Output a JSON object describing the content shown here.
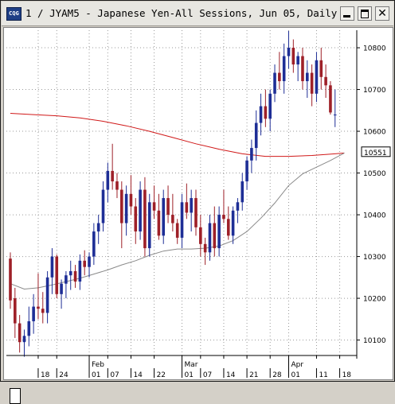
{
  "window": {
    "title": "1 / JYAM5 - Japanese Yen-All Sessions, Jun 05, Daily",
    "icon": "cqg-icon",
    "controls": [
      "minimize",
      "maximize",
      "close"
    ]
  },
  "colors": {
    "up": "#1e2e96",
    "down": "#9e2028",
    "ma_long": "#d01818",
    "ma_short": "#8a8a8a",
    "price_box": "#000000"
  },
  "price_label": "10551",
  "chart_data": {
    "type": "candlestick",
    "symbol": "JYAM5",
    "title": "1 / JYAM5 - Japanese Yen-All Sessions, Jun 05, Daily",
    "y_ticks": [
      10100,
      10200,
      10300,
      10400,
      10500,
      10600,
      10700,
      10800
    ],
    "y_range": [
      10063,
      10842
    ],
    "month_labels": [
      {
        "label": "Feb",
        "index": 17
      },
      {
        "label": "Mar",
        "index": 37
      },
      {
        "label": "Apr",
        "index": 60
      }
    ],
    "day_labels": [
      {
        "label": "18",
        "index": 6
      },
      {
        "label": "24",
        "index": 10
      },
      {
        "label": "01",
        "index": 17
      },
      {
        "label": "07",
        "index": 21
      },
      {
        "label": "14",
        "index": 26
      },
      {
        "label": "22",
        "index": 31
      },
      {
        "label": "01",
        "index": 37
      },
      {
        "label": "07",
        "index": 41
      },
      {
        "label": "14",
        "index": 46
      },
      {
        "label": "21",
        "index": 51
      },
      {
        "label": "28",
        "index": 56
      },
      {
        "label": "01",
        "index": 60
      },
      {
        "label": "11",
        "index": 66
      },
      {
        "label": "18",
        "index": 71
      }
    ],
    "candles": [
      [
        10295,
        10310,
        10175,
        10195
      ],
      [
        10200,
        10225,
        10105,
        10140
      ],
      [
        10140,
        10160,
        10070,
        10095
      ],
      [
        10095,
        10125,
        10060,
        10110
      ],
      [
        10110,
        10180,
        10085,
        10145
      ],
      [
        10145,
        10210,
        10115,
        10180
      ],
      [
        10180,
        10260,
        10150,
        10175
      ],
      [
        10175,
        10215,
        10140,
        10165
      ],
      [
        10165,
        10265,
        10140,
        10250
      ],
      [
        10250,
        10320,
        10210,
        10300
      ],
      [
        10300,
        10305,
        10200,
        10210
      ],
      [
        10210,
        10245,
        10175,
        10235
      ],
      [
        10235,
        10265,
        10200,
        10255
      ],
      [
        10255,
        10290,
        10220,
        10265
      ],
      [
        10265,
        10280,
        10225,
        10240
      ],
      [
        10240,
        10305,
        10220,
        10290
      ],
      [
        10290,
        10315,
        10255,
        10275
      ],
      [
        10275,
        10310,
        10250,
        10300
      ],
      [
        10300,
        10380,
        10280,
        10360
      ],
      [
        10360,
        10400,
        10330,
        10380
      ],
      [
        10380,
        10480,
        10360,
        10460
      ],
      [
        10460,
        10525,
        10430,
        10505
      ],
      [
        10505,
        10570,
        10460,
        10480
      ],
      [
        10480,
        10500,
        10440,
        10460
      ],
      [
        10460,
        10480,
        10320,
        10380
      ],
      [
        10380,
        10470,
        10350,
        10450
      ],
      [
        10450,
        10495,
        10400,
        10420
      ],
      [
        10420,
        10440,
        10330,
        10360
      ],
      [
        10360,
        10480,
        10340,
        10460
      ],
      [
        10460,
        10490,
        10300,
        10320
      ],
      [
        10320,
        10450,
        10300,
        10430
      ],
      [
        10430,
        10470,
        10390,
        10410
      ],
      [
        10410,
        10450,
        10340,
        10350
      ],
      [
        10350,
        10460,
        10330,
        10440
      ],
      [
        10440,
        10470,
        10380,
        10400
      ],
      [
        10400,
        10450,
        10360,
        10380
      ],
      [
        10380,
        10390,
        10330,
        10345
      ],
      [
        10345,
        10450,
        10320,
        10430
      ],
      [
        10430,
        10475,
        10390,
        10405
      ],
      [
        10405,
        10460,
        10360,
        10440
      ],
      [
        10440,
        10460,
        10350,
        10370
      ],
      [
        10370,
        10400,
        10300,
        10330
      ],
      [
        10330,
        10345,
        10280,
        10310
      ],
      [
        10310,
        10400,
        10290,
        10380
      ],
      [
        10380,
        10420,
        10300,
        10320
      ],
      [
        10320,
        10420,
        10300,
        10400
      ],
      [
        10400,
        10460,
        10380,
        10390
      ],
      [
        10390,
        10420,
        10340,
        10350
      ],
      [
        10350,
        10420,
        10330,
        10410
      ],
      [
        10410,
        10440,
        10380,
        10430
      ],
      [
        10430,
        10500,
        10410,
        10480
      ],
      [
        10480,
        10540,
        10460,
        10530
      ],
      [
        10530,
        10580,
        10500,
        10560
      ],
      [
        10560,
        10650,
        10530,
        10620
      ],
      [
        10620,
        10690,
        10590,
        10660
      ],
      [
        10660,
        10700,
        10610,
        10630
      ],
      [
        10630,
        10700,
        10600,
        10690
      ],
      [
        10690,
        10760,
        10670,
        10740
      ],
      [
        10740,
        10790,
        10700,
        10720
      ],
      [
        10720,
        10810,
        10690,
        10780
      ],
      [
        10780,
        10840,
        10750,
        10800
      ],
      [
        10800,
        10820,
        10740,
        10760
      ],
      [
        10760,
        10790,
        10720,
        10780
      ],
      [
        10780,
        10800,
        10700,
        10720
      ],
      [
        10720,
        10770,
        10680,
        10740
      ],
      [
        10740,
        10760,
        10660,
        10690
      ],
      [
        10690,
        10790,
        10670,
        10770
      ],
      [
        10770,
        10800,
        10700,
        10730
      ],
      [
        10730,
        10760,
        10680,
        10710
      ],
      [
        10710,
        10720,
        10640,
        10645
      ],
      [
        10640,
        10700,
        10610,
        10640
      ]
    ],
    "ma_long": [
      [
        0,
        10643
      ],
      [
        5,
        10640
      ],
      [
        10,
        10637
      ],
      [
        15,
        10632
      ],
      [
        20,
        10624
      ],
      [
        25,
        10613
      ],
      [
        30,
        10600
      ],
      [
        35,
        10585
      ],
      [
        40,
        10570
      ],
      [
        45,
        10557
      ],
      [
        50,
        10546
      ],
      [
        55,
        10540
      ],
      [
        60,
        10540
      ],
      [
        65,
        10542
      ],
      [
        70,
        10546
      ],
      [
        72,
        10548
      ]
    ],
    "ma_short": [
      [
        0,
        10235
      ],
      [
        3,
        10222
      ],
      [
        6,
        10225
      ],
      [
        9,
        10232
      ],
      [
        12,
        10240
      ],
      [
        15,
        10248
      ],
      [
        18,
        10258
      ],
      [
        21,
        10268
      ],
      [
        24,
        10280
      ],
      [
        27,
        10290
      ],
      [
        30,
        10303
      ],
      [
        33,
        10313
      ],
      [
        36,
        10318
      ],
      [
        39,
        10318
      ],
      [
        42,
        10320
      ],
      [
        45,
        10325
      ],
      [
        48,
        10338
      ],
      [
        51,
        10360
      ],
      [
        54,
        10392
      ],
      [
        57,
        10428
      ],
      [
        60,
        10470
      ],
      [
        63,
        10498
      ],
      [
        66,
        10514
      ],
      [
        69,
        10530
      ],
      [
        72,
        10548
      ]
    ]
  }
}
